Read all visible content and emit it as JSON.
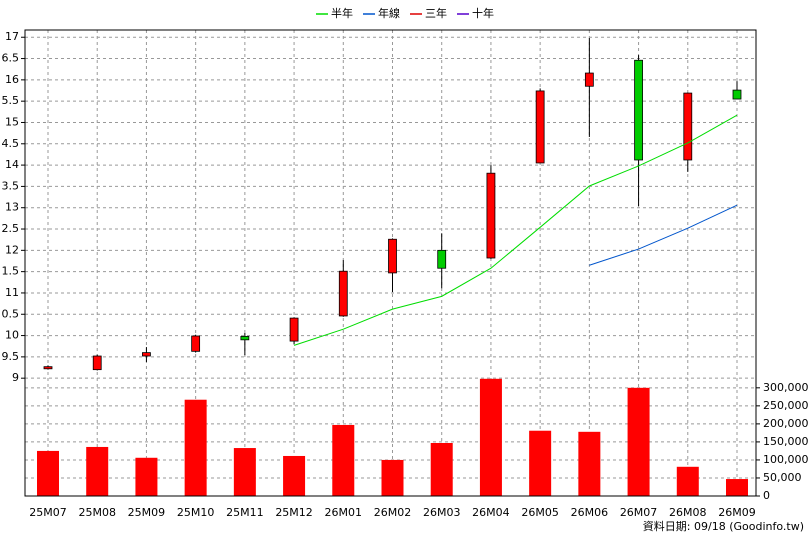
{
  "chart_data": {
    "type": "candlestick",
    "categories": [
      "25M07",
      "25M08",
      "25M09",
      "25M10",
      "25M11",
      "25M12",
      "26M01",
      "26M02",
      "26M03",
      "26M04",
      "26M05",
      "26M06",
      "26M07",
      "26M08",
      "26M09"
    ],
    "open": [
      9.22,
      9.2,
      9.52,
      9.63,
      9.98,
      9.87,
      10.46,
      11.47,
      12.0,
      11.82,
      14.05,
      15.85,
      16.46,
      14.12,
      15.76
    ],
    "high": [
      9.3,
      9.55,
      9.73,
      10.02,
      10.06,
      10.43,
      11.77,
      12.28,
      12.4,
      14.0,
      15.8,
      16.98,
      16.58,
      15.7,
      15.97
    ],
    "low": [
      9.2,
      9.18,
      9.38,
      9.6,
      9.54,
      9.8,
      10.44,
      11.02,
      11.11,
      11.8,
      14.05,
      14.66,
      13.04,
      13.84,
      15.55
    ],
    "close": [
      9.27,
      9.52,
      9.6,
      9.99,
      9.9,
      10.41,
      11.51,
      12.26,
      11.58,
      13.81,
      15.74,
      16.16,
      14.12,
      15.69,
      15.55
    ],
    "up_color": "#ff0000",
    "down_color": "#00cc00",
    "series": [
      {
        "name": "半年",
        "color": "#00dd00",
        "values": [
          null,
          null,
          null,
          null,
          null,
          9.77,
          10.15,
          10.62,
          10.92,
          11.58,
          12.54,
          13.51,
          13.98,
          14.52,
          15.17
        ]
      },
      {
        "name": "年線",
        "color": "#0055cc",
        "values": [
          null,
          null,
          null,
          null,
          null,
          null,
          null,
          null,
          null,
          null,
          null,
          11.65,
          12.03,
          12.52,
          13.06
        ]
      },
      {
        "name": "三年",
        "color": "#dd0000",
        "values": [
          null,
          null,
          null,
          null,
          null,
          null,
          null,
          null,
          null,
          null,
          null,
          null,
          null,
          null,
          null
        ]
      },
      {
        "name": "十年",
        "color": "#5500cc",
        "values": [
          null,
          null,
          null,
          null,
          null,
          null,
          null,
          null,
          null,
          null,
          null,
          null,
          null,
          null,
          null
        ]
      }
    ],
    "volume": {
      "color": "#ff0000",
      "axis": "y2",
      "values": [
        125000,
        136000,
        106000,
        267000,
        133000,
        111000,
        197000,
        100000,
        147000,
        325000,
        181000,
        178000,
        300000,
        81000,
        47000
      ]
    },
    "ylim": [
      8.84,
      17.17
    ],
    "yticks": [
      17,
      {
        "value": 16.5,
        "label": "6.5"
      },
      16,
      {
        "value": 15.5,
        "label": "5.5"
      },
      15,
      {
        "value": 14.5,
        "label": "4.5"
      },
      14,
      {
        "value": 13.5,
        "label": "3.5"
      },
      13,
      {
        "value": 12.5,
        "label": "2.5"
      },
      12,
      {
        "value": 11.5,
        "label": "1.5"
      },
      11,
      {
        "value": 10.5,
        "label": "0.5"
      },
      10,
      9.5,
      9
    ],
    "y2lim": [
      0,
      330000
    ],
    "y2ticks": [
      {
        "value": 300000,
        "label": "300,000"
      },
      {
        "value": 250000,
        "label": "250,000"
      },
      {
        "value": 200000,
        "label": "200,000"
      },
      {
        "value": 150000,
        "label": "150,000"
      },
      {
        "value": 100000,
        "label": "100,000"
      },
      {
        "value": 50000,
        "label": "50,000"
      },
      0
    ],
    "grid": true,
    "legend": "top",
    "footer": "資料日期: 09/18  (Goodinfo.tw)"
  }
}
